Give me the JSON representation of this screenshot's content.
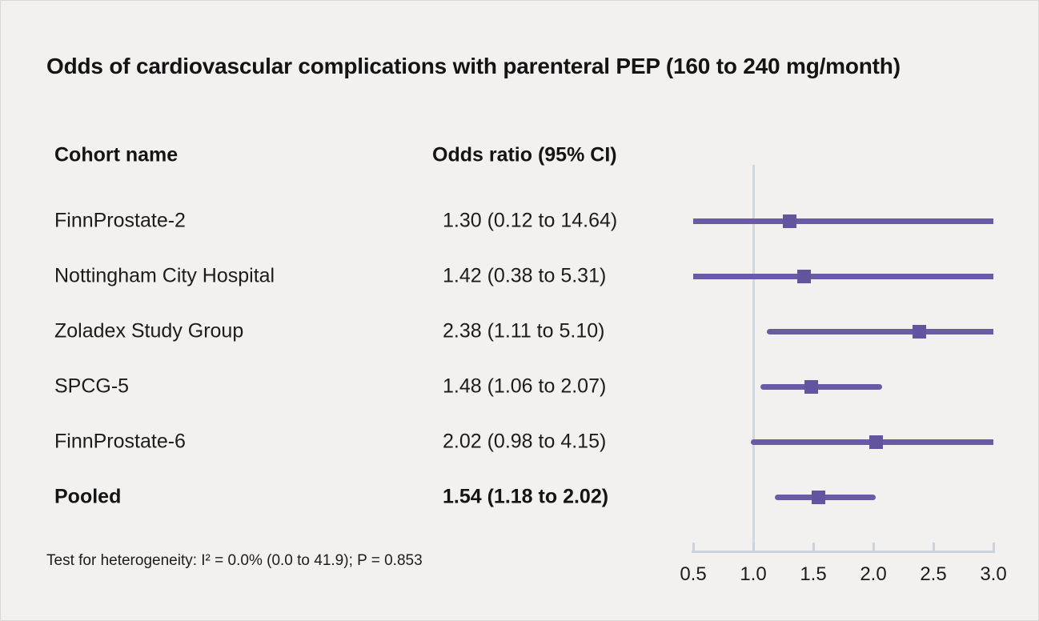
{
  "title": "Odds of cardiovascular complications with parenteral PEP (160 to 240 mg/month)",
  "table": {
    "col1_header": "Cohort name",
    "col2_header": "Odds ratio (95% CI)",
    "rows": [
      {
        "name": "FinnProstate-2",
        "or_ci": "1.30 (0.12 to 14.64)"
      },
      {
        "name": "Nottingham City Hospital",
        "or_ci": "1.42 (0.38 to 5.31)"
      },
      {
        "name": "Zoladex Study Group",
        "or_ci": "2.38 (1.11 to 5.10)"
      },
      {
        "name": "SPCG-5",
        "or_ci": "1.48 (1.06 to 2.07)"
      },
      {
        "name": "FinnProstate-6",
        "or_ci": "2.02 (0.98 to 4.15)"
      },
      {
        "name": "Pooled",
        "or_ci": "1.54 (1.18 to 2.02)"
      }
    ]
  },
  "footnote": "Test for heterogeneity: I² = 0.0% (0.0 to 41.9); P = 0.853",
  "chart_data": {
    "type": "forest",
    "title": "Odds of cardiovascular complications with parenteral PEP (160 to 240 mg/month)",
    "series": [
      {
        "label": "FinnProstate-2",
        "or": 1.3,
        "ci_low": 0.12,
        "ci_high": 14.64,
        "pooled": false
      },
      {
        "label": "Nottingham City Hospital",
        "or": 1.42,
        "ci_low": 0.38,
        "ci_high": 5.31,
        "pooled": false
      },
      {
        "label": "Zoladex Study Group",
        "or": 2.38,
        "ci_low": 1.11,
        "ci_high": 5.1,
        "pooled": false
      },
      {
        "label": "SPCG-5",
        "or": 1.48,
        "ci_low": 1.06,
        "ci_high": 2.07,
        "pooled": false
      },
      {
        "label": "FinnProstate-6",
        "or": 2.02,
        "ci_low": 0.98,
        "ci_high": 4.15,
        "pooled": false
      },
      {
        "label": "Pooled",
        "or": 1.54,
        "ci_low": 1.18,
        "ci_high": 2.02,
        "pooled": true
      }
    ],
    "x_range": [
      0.5,
      3.0
    ],
    "x_ticks": [
      0.5,
      1.0,
      1.5,
      2.0,
      2.5,
      3.0
    ],
    "x_tick_labels": [
      "0.5",
      "1.0",
      "1.5",
      "2.0",
      "2.5",
      "3.0"
    ],
    "reference_line": 1.0,
    "heterogeneity": "Test for heterogeneity: I² = 0.0% (0.0 to 41.9); P = 0.853",
    "line_color": "#6b5ba7",
    "marker_color": "#63549f",
    "axis_color": "#cdd3dc",
    "reference_line_color": "#d3d7e0",
    "grid": false,
    "legend": false
  }
}
